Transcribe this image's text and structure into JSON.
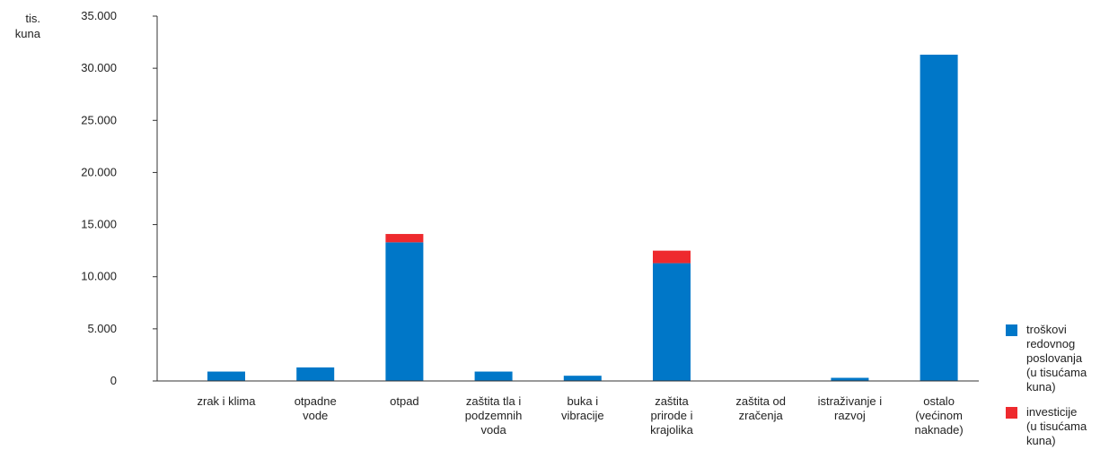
{
  "chart_data": {
    "type": "bar",
    "stacked": true,
    "y_unit_label": "tis.\nkuna",
    "categories": [
      "zrak i klima",
      "otpadne\nvode",
      "otpad",
      "zaštita tla i\npodzemnih\nvoda",
      "buka i\nvibracije",
      "zaštita\nprirode i\nkrajolika",
      "zaštita od\nzračenja",
      "istraživanje i\nrazvoj",
      "ostalo\n(većinom\nnaknade)"
    ],
    "series": [
      {
        "name": "troškovi\nredovnog\nposlovanja\n(u tisućama\nkuna)",
        "color": "#0077c8",
        "values": [
          900,
          1300,
          13300,
          900,
          500,
          11300,
          0,
          300,
          31300
        ]
      },
      {
        "name": "investicije\n(u tisućama\nkuna)",
        "color": "#ee2a2e",
        "values": [
          0,
          0,
          800,
          0,
          0,
          1200,
          0,
          0,
          0
        ]
      }
    ],
    "ylim": [
      0,
      35000
    ],
    "yticks": [
      0,
      5000,
      10000,
      15000,
      20000,
      25000,
      30000,
      35000
    ],
    "ytick_labels": [
      "0",
      "5.000",
      "10.000",
      "15.000",
      "20.000",
      "25.000",
      "30.000",
      "35.000"
    ],
    "grid": false,
    "legend_position": "right"
  }
}
